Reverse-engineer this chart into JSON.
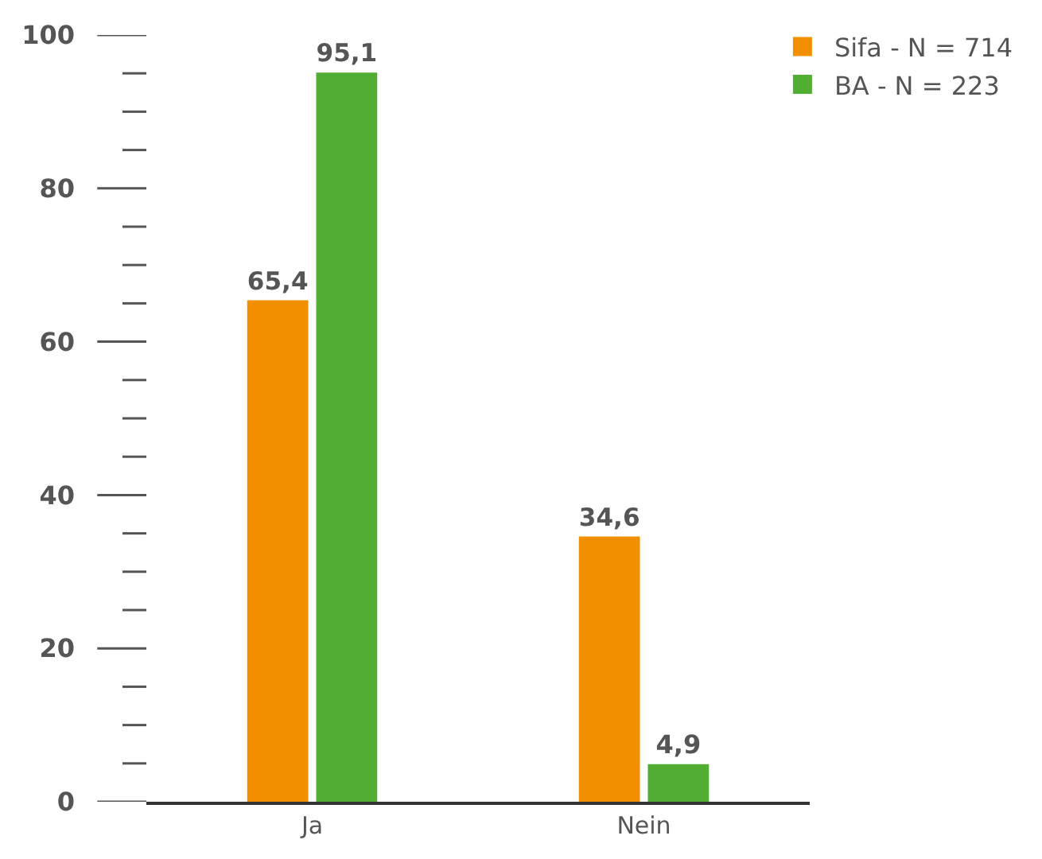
{
  "chart_data": {
    "type": "bar",
    "categories": [
      "Ja",
      "Nein"
    ],
    "series": [
      {
        "name": "Sifa - N = 714",
        "color": "#f18f00",
        "values": [
          65.4,
          34.6
        ],
        "value_labels": [
          "65,4",
          "34,6"
        ]
      },
      {
        "name": "BA - N = 223",
        "color": "#52ae32",
        "values": [
          95.1,
          4.9
        ],
        "value_labels": [
          "95,1",
          "4,9"
        ]
      }
    ],
    "ylim": [
      0,
      100
    ],
    "yticks": [
      0,
      {
        "value": 5,
        "label": null
      },
      {
        "value": 10,
        "label": null
      },
      {
        "value": 15,
        "label": null
      },
      20,
      {
        "value": 25,
        "label": null
      },
      {
        "value": 30,
        "label": null
      },
      {
        "value": 35,
        "label": null
      },
      40,
      {
        "value": 45,
        "label": null
      },
      {
        "value": 50,
        "label": null
      },
      {
        "value": 55,
        "label": null
      },
      60,
      {
        "value": 65,
        "label": null
      },
      {
        "value": 70,
        "label": null
      },
      {
        "value": 75,
        "label": null
      },
      80,
      {
        "value": 85,
        "label": null
      },
      {
        "value": 90,
        "label": null
      },
      {
        "value": 95,
        "label": null
      },
      100
    ],
    "legend": "top right"
  }
}
